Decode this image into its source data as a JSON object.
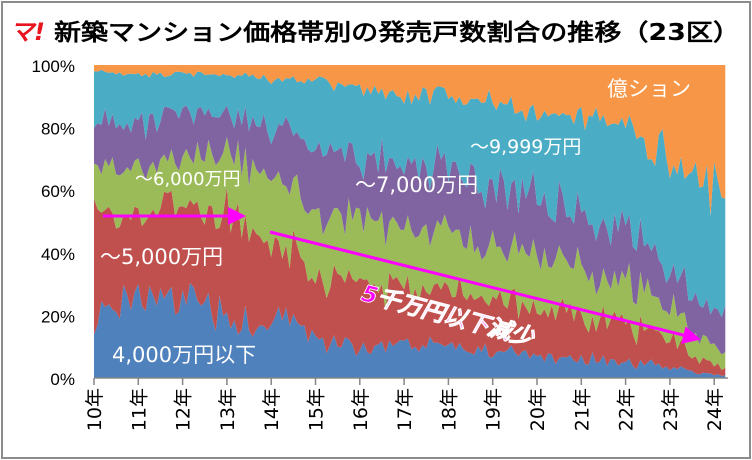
{
  "logo": "マ!",
  "chart_data": {
    "type": "area",
    "stacked": true,
    "percent": true,
    "title": "新築マンション価格帯別の発売戸数割合の推移（23区）",
    "x_tick_labels": [
      "10年",
      "11年",
      "12年",
      "13年",
      "14年",
      "15年",
      "16年",
      "17年",
      "18年",
      "19年",
      "20年",
      "21年",
      "22年",
      "23年",
      "24年"
    ],
    "y_tick_labels": [
      "0%",
      "20%",
      "40%",
      "60%",
      "80%",
      "100%"
    ],
    "ylim": [
      0,
      100
    ],
    "x": [
      2010,
      2011,
      2012,
      2013,
      2013.5,
      2014,
      2015,
      2016,
      2017,
      2018,
      2019,
      2020,
      2021,
      2022,
      2023,
      2024,
      2024.3
    ],
    "series": [
      {
        "name": "4,000万円以下",
        "color": "#4F81BD",
        "values": [
          20,
          25,
          28,
          20,
          15,
          20,
          12,
          10,
          10,
          10,
          8,
          7,
          6,
          5,
          3,
          1,
          1
        ]
      },
      {
        "name": "～5,000万円",
        "color": "#C0504D",
        "values": [
          35,
          27,
          27,
          32,
          35,
          25,
          23,
          20,
          18,
          18,
          17,
          15,
          14,
          13,
          9,
          3,
          2
        ]
      },
      {
        "name": "～6,000万円",
        "color": "#9BBB59",
        "values": [
          13,
          15,
          15,
          20,
          20,
          20,
          20,
          20,
          20,
          20,
          17,
          18,
          15,
          14,
          10,
          6,
          5
        ]
      },
      {
        "name": "～7,000万円",
        "color": "#8064A2",
        "values": [
          14,
          15,
          15,
          13,
          13,
          15,
          20,
          20,
          20,
          20,
          20,
          18,
          17,
          16,
          13,
          10,
          10
        ]
      },
      {
        "name": "～9,999万円",
        "color": "#4BACC6",
        "values": [
          16,
          15,
          12,
          12,
          14,
          15,
          20,
          22,
          22,
          22,
          26,
          27,
          33,
          32,
          35,
          40,
          38
        ]
      },
      {
        "name": "億ション",
        "color": "#F79646",
        "values": [
          2,
          3,
          3,
          3,
          3,
          5,
          5,
          8,
          10,
          10,
          12,
          15,
          15,
          20,
          30,
          40,
          44
        ]
      }
    ],
    "annotations": [
      {
        "text": "5千万円以下減少",
        "color": "#FF00FF"
      }
    ]
  }
}
